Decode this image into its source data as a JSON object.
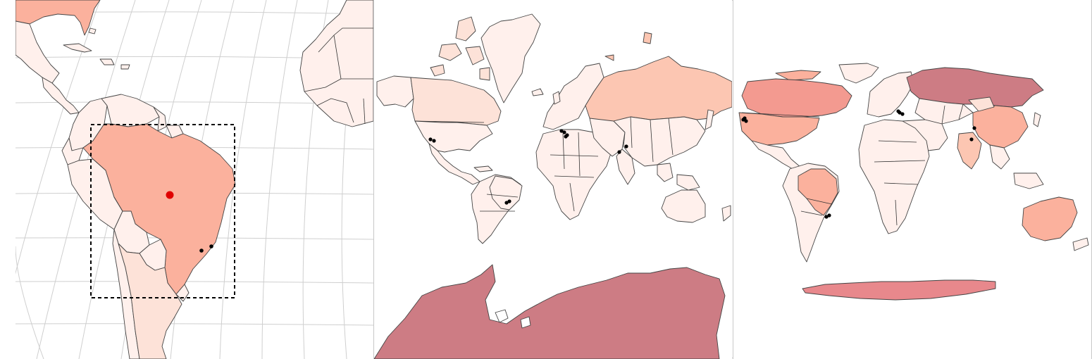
{
  "colors": {
    "background": "#ffffff",
    "land_lightest": "#fff0ec",
    "land_light": "#fde2d8",
    "land_medium_light": "#fcc6b2",
    "land_medium": "#fbb19d",
    "land_medium_dark": "#f39a90",
    "land_dark": "#e8888c",
    "land_darkest": "#cd7c84",
    "country_border": "#333333",
    "graticule": "#cfcfcf",
    "highlight_point": "#e00000",
    "site_point": "#000000",
    "extent_box": "#000000"
  },
  "panels": [
    {
      "name": "south-america-zoom",
      "projection_shape": "curved graticule",
      "has_extent_box": true,
      "highlight_point_count": 1,
      "site_point_count": 2
    },
    {
      "name": "world-mercator",
      "projection_shape": "rectangular",
      "has_extent_box": false,
      "site_point_count": 10
    },
    {
      "name": "world-pseudocylindrical",
      "projection_shape": "elliptical",
      "has_extent_box": false,
      "site_point_count": 10
    }
  ]
}
